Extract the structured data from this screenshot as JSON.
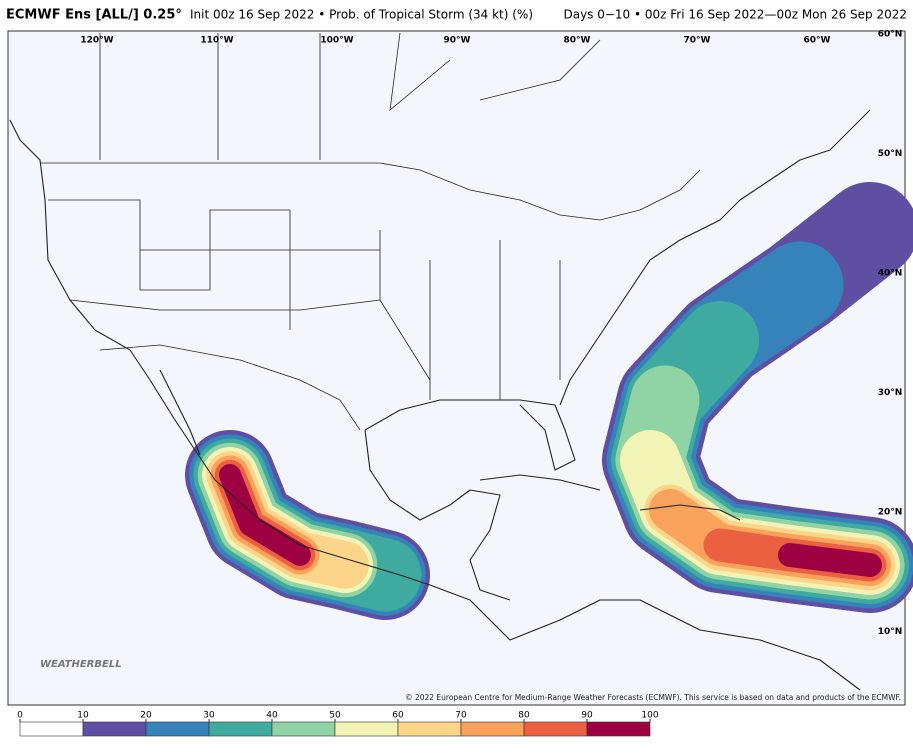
{
  "header": {
    "model": "ECMWF Ens [ALL/] 0.25°",
    "description": "Init 00z 16 Sep 2022 • Prob. of Tropical Storm (34 kt) (%)",
    "period": "Days 0−10 • 00z Fri 16 Sep 2022—00z Mon 26 Sep 2022"
  },
  "map": {
    "longitude_labels": [
      "120°W",
      "110°W",
      "100°W",
      "90°W",
      "80°W",
      "70°W",
      "60°W"
    ],
    "latitude_labels": [
      "60°N",
      "50°N",
      "40°N",
      "30°N",
      "20°N",
      "10°N"
    ],
    "logo": "WEATHERBELL",
    "copyright": "© 2022 European Centre for Medium-Range Weather Forecasts (ECMWF). This service is based on data and products of the ECMWF."
  },
  "colorbar": {
    "ticks": [
      0,
      10,
      20,
      30,
      40,
      50,
      60,
      70,
      80,
      90,
      100
    ],
    "colors": [
      "#ffffff",
      "#5e4fa2",
      "#3682ba",
      "#3faa9f",
      "#90d3a4",
      "#f1f4b4",
      "#fdd58a",
      "#f9a25c",
      "#eb6040",
      "#9e0142"
    ]
  }
}
